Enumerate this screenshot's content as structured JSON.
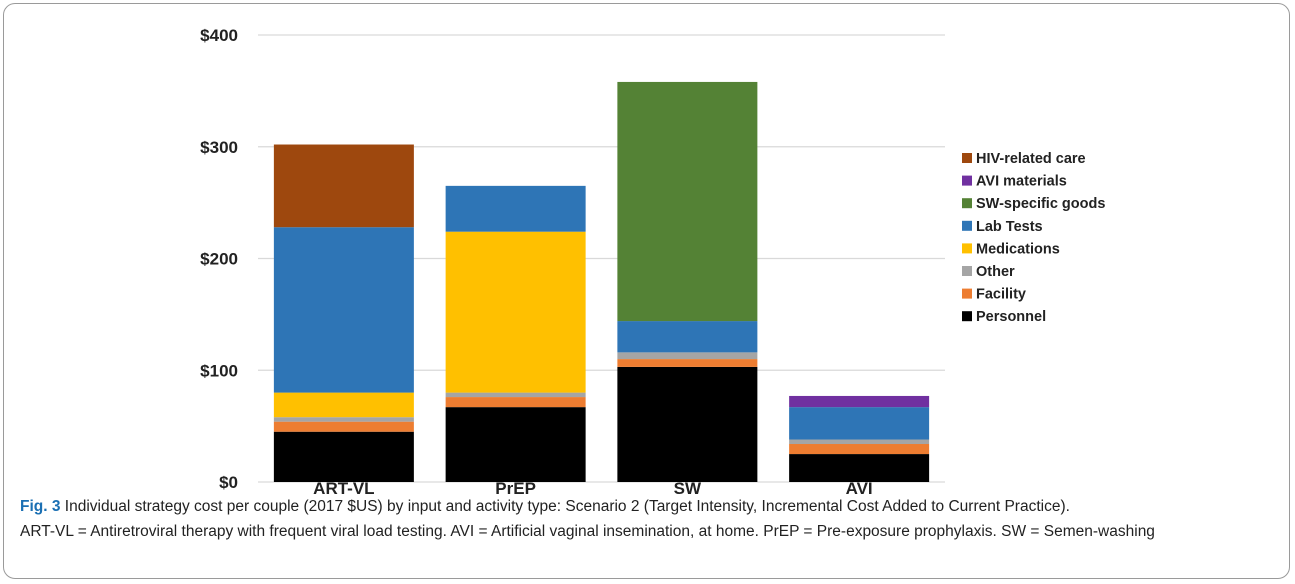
{
  "chart_data": {
    "type": "bar",
    "stacked": true,
    "categories": [
      "ART-VL",
      "PrEP",
      "SW",
      "AVI"
    ],
    "ylim": [
      0,
      400
    ],
    "yticks": [
      0,
      100,
      200,
      300,
      400
    ],
    "ytick_labels": [
      "$0",
      "$100",
      "$200",
      "$300",
      "$400"
    ],
    "grid": true,
    "legend_position": "right",
    "series": [
      {
        "name": "Personnel",
        "color": "#000000",
        "values": [
          45,
          67,
          103,
          25
        ]
      },
      {
        "name": "Facility",
        "color": "#ed7d31",
        "values": [
          9,
          9,
          7,
          9
        ]
      },
      {
        "name": "Other",
        "color": "#a5a5a5",
        "values": [
          4,
          4,
          6,
          4
        ]
      },
      {
        "name": "Medications",
        "color": "#ffc000",
        "values": [
          22,
          144,
          0,
          0
        ]
      },
      {
        "name": "Lab Tests",
        "color": "#2e75b6",
        "values": [
          148,
          41,
          28,
          29
        ]
      },
      {
        "name": "SW-specific goods",
        "color": "#548235",
        "values": [
          0,
          0,
          214,
          0
        ]
      },
      {
        "name": "AVI materials",
        "color": "#7030a0",
        "values": [
          0,
          0,
          0,
          10
        ]
      },
      {
        "name": "HIV-related care",
        "color": "#9e480e",
        "values": [
          74,
          0,
          0,
          0
        ]
      }
    ],
    "legend_order": [
      "HIV-related care",
      "AVI materials",
      "SW-specific goods",
      "Lab Tests",
      "Medications",
      "Other",
      "Facility",
      "Personnel"
    ]
  },
  "caption": {
    "fig_label": "Fig. 3",
    "line1": " Individual strategy cost per couple (2017 $US) by input and activity type: Scenario 2 (Target Intensity, Incremental Cost Added to Current Practice).",
    "line2": "ART-VL = Antiretroviral therapy with frequent viral load testing. AVI = Artificial vaginal insemination, at home. PrEP = Pre-exposure prophylaxis. SW = Semen-washing"
  }
}
